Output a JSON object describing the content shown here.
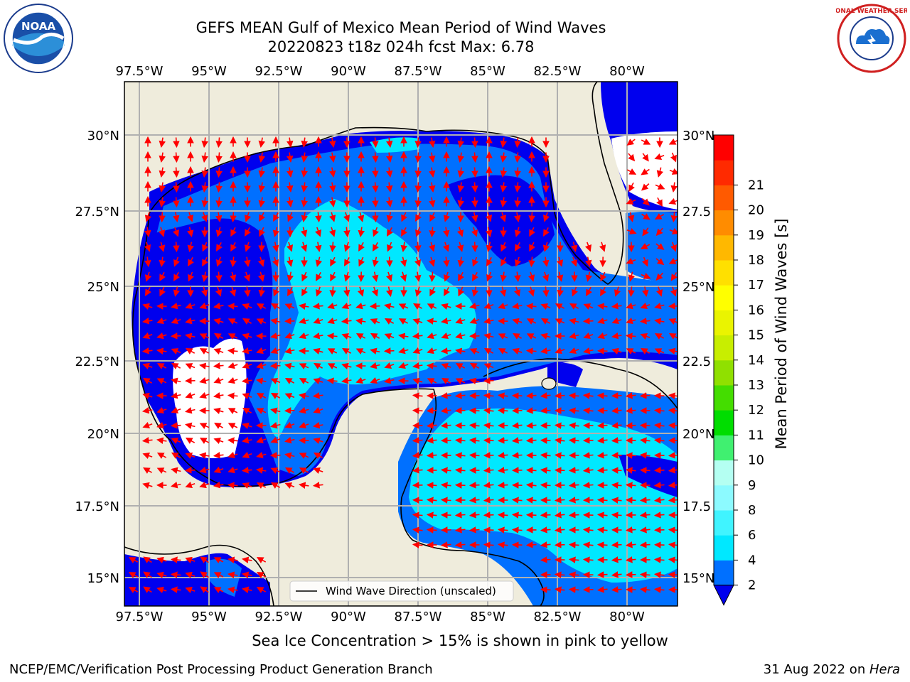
{
  "header": {
    "title": "GEFS MEAN Gulf of Mexico Mean Period of Wind Waves",
    "subtitle": "20220823 t18z 024h fcst   Max: 6.78"
  },
  "logos": {
    "left": {
      "icon": "noaa-logo",
      "text": "NOAA"
    },
    "right": {
      "icon": "nws-logo",
      "text": "NATIONAL WEATHER SERVICE"
    }
  },
  "map": {
    "lon_labels": [
      "97.5°W",
      "95°W",
      "92.5°W",
      "90°W",
      "87.5°W",
      "85°W",
      "82.5°W",
      "80°W"
    ],
    "lat_labels_left": [
      "30°N",
      "27.5°N",
      "25°N",
      "22.5°N",
      "20°N",
      "17.5°N",
      "15°N"
    ],
    "lat_labels_right": [
      "30°N",
      "27.5",
      "25°N",
      "22.5",
      "20°N",
      "17.5",
      "15°N"
    ],
    "legend_label": "Wind Wave Direction (unscaled)",
    "colors": {
      "land": "#efecdc",
      "grid": "#b0b0b0",
      "arrows": "#ff0000",
      "coast": "#000000"
    }
  },
  "colorbar": {
    "label": "Mean Period of Wind Waves [s]",
    "ticks": [
      "2",
      "4",
      "6",
      "8",
      "9",
      "10",
      "11",
      "12",
      "13",
      "14",
      "15",
      "16",
      "17",
      "18",
      "19",
      "20",
      "21"
    ],
    "colors": [
      "#0070ff",
      "#00e8ff",
      "#40f4ff",
      "#8cfaff",
      "#b4fff2",
      "#40f070",
      "#00dd00",
      "#44dd00",
      "#90e000",
      "#c8ee00",
      "#eaf400",
      "#ffff00",
      "#ffe000",
      "#ffb800",
      "#ff8c00",
      "#ff5a00",
      "#ff2a00",
      "#ff0000"
    ],
    "under_color": "#0000ee"
  },
  "footer": {
    "note": "Sea Ice Concentration > 15% is shown in pink to yellow",
    "credit_left": "NCEP/EMC/Verification Post Processing Product Generation Branch",
    "date": "31 Aug 2022 on ",
    "host": "Hera"
  }
}
